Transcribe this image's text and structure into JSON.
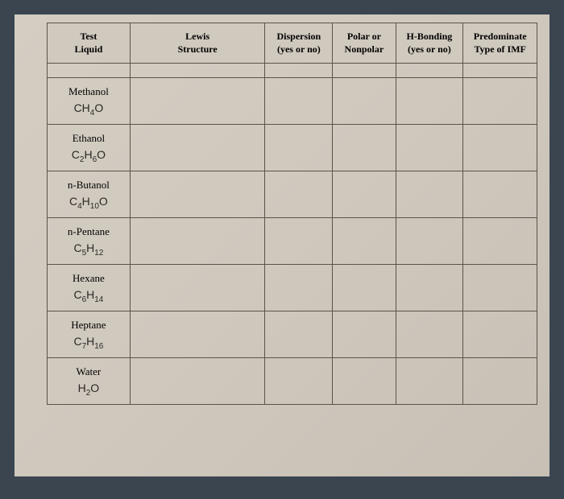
{
  "table": {
    "headers": {
      "test_liquid_l1": "Test",
      "test_liquid_l2": "Liquid",
      "lewis_l1": "Lewis",
      "lewis_l2": "Structure",
      "dispersion_l1": "Dispersion",
      "dispersion_l2": "(yes or no)",
      "polar_l1": "Polar or",
      "polar_l2": "Nonpolar",
      "hbond_l1": "H-Bonding",
      "hbond_l2": "(yes or no)",
      "imf_l1": "Predominate",
      "imf_l2": "Type of IMF"
    },
    "rows": [
      {
        "name": "Methanol",
        "formula_parts": [
          "CH",
          "4",
          "O"
        ]
      },
      {
        "name": "Ethanol",
        "formula_parts": [
          "C",
          "2",
          "H",
          "6",
          "O"
        ]
      },
      {
        "name": "n-Butanol",
        "formula_parts": [
          "C",
          "4",
          "H",
          "10",
          "O"
        ]
      },
      {
        "name": "n-Pentane",
        "formula_parts": [
          "C",
          "5",
          "H",
          "12"
        ]
      },
      {
        "name": "Hexane",
        "formula_parts": [
          "C",
          "6",
          "H",
          "14"
        ]
      },
      {
        "name": "Heptane",
        "formula_parts": [
          "C",
          "7",
          "H",
          "16"
        ]
      },
      {
        "name": "Water",
        "formula_parts": [
          "H",
          "2",
          "O"
        ]
      }
    ],
    "colors": {
      "page_bg": "#3a4550",
      "paper_bg": "#d0c9be",
      "border": "#5a5448",
      "text": "#2a2826"
    }
  }
}
